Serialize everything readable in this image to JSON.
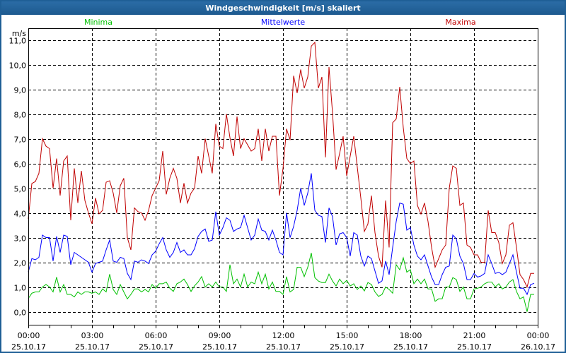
{
  "window": {
    "title": "Windgeschwindigkeit [m/s] skaliert"
  },
  "chart_data": {
    "type": "line",
    "title": "Windgeschwindigkeit [m/s] skaliert",
    "ylabel": "m/s",
    "ylim": [
      -0.56,
      11.47
    ],
    "y_ticks": [
      0,
      1,
      2,
      3,
      4,
      5,
      6,
      7,
      8,
      9,
      10,
      11
    ],
    "y_tick_labels": [
      "0,0",
      "1,0",
      "2,0",
      "3,0",
      "4,0",
      "5,0",
      "6,0",
      "7,0",
      "8,0",
      "9,0",
      "10,0",
      "11,0"
    ],
    "x_range_hours": [
      0,
      24
    ],
    "x_step_minutes": 10,
    "x_ticks_hours": [
      0,
      3,
      6,
      9,
      12,
      15,
      18,
      21,
      24
    ],
    "x_tick_labels": [
      {
        "time": "00:00",
        "date": "25.10.17"
      },
      {
        "time": "03:00",
        "date": "25.10.17"
      },
      {
        "time": "06:00",
        "date": "25.10.17"
      },
      {
        "time": "09:00",
        "date": "25.10.17"
      },
      {
        "time": "12:00",
        "date": "25.10.17"
      },
      {
        "time": "15:00",
        "date": "25.10.17"
      },
      {
        "time": "18:00",
        "date": "25.10.17"
      },
      {
        "time": "21:00",
        "date": "25.10.17"
      },
      {
        "time": "00:00",
        "date": "26.10.17"
      }
    ],
    "grid": true,
    "legend_placement": "top",
    "series": [
      {
        "name": "Minima",
        "color": "#00c000",
        "values": [
          0.53,
          0.75,
          0.8,
          0.8,
          1.0,
          1.1,
          1.0,
          0.8,
          1.4,
          0.8,
          1.1,
          0.7,
          0.7,
          0.6,
          0.8,
          0.7,
          0.8,
          0.8,
          0.75,
          0.8,
          0.7,
          0.92,
          0.8,
          1.52,
          0.9,
          0.7,
          1.1,
          0.8,
          0.52,
          0.7,
          0.92,
          0.92,
          0.8,
          0.9,
          0.8,
          1.1,
          0.95,
          1.13,
          1.13,
          1.2,
          0.95,
          0.82,
          1.13,
          1.2,
          1.32,
          1.1,
          0.82,
          1.05,
          1.2,
          1.42,
          1.0,
          1.13,
          1.0,
          1.2,
          1.0,
          1.0,
          0.82,
          1.9,
          1.13,
          1.32,
          1.0,
          1.52,
          1.0,
          1.2,
          1.13,
          1.6,
          1.13,
          1.52,
          0.92,
          1.2,
          0.82,
          0.82,
          0.7,
          1.42,
          0.8,
          0.9,
          1.8,
          1.8,
          1.42,
          1.8,
          2.38,
          1.38,
          1.24,
          1.18,
          1.18,
          1.52,
          1.24,
          1.04,
          1.32,
          1.13,
          1.27,
          1.04,
          1.13,
          0.9,
          1.04,
          0.84,
          1.18,
          1.1,
          0.8,
          0.62,
          0.7,
          1.0,
          0.9,
          0.75,
          1.9,
          1.7,
          2.18,
          1.6,
          1.7,
          1.13,
          1.32,
          1.13,
          1.32,
          0.92,
          0.92,
          0.42,
          0.52,
          0.52,
          1.0,
          1.0,
          1.38,
          1.3,
          0.82,
          1.0,
          0.52,
          0.52,
          0.92,
          0.95,
          1.0,
          1.13,
          1.2,
          1.2,
          1.0,
          1.13,
          0.92,
          1.0,
          1.2,
          1.3,
          0.82,
          0.52,
          0.6,
          0.0,
          0.7,
          0.7
        ]
      },
      {
        "name": "Mittelwerte",
        "color": "#0000ff",
        "values": [
          1.6,
          2.15,
          2.1,
          2.2,
          3.1,
          3.0,
          3.0,
          2.05,
          3.05,
          2.4,
          3.1,
          3.05,
          1.9,
          2.4,
          2.3,
          2.2,
          2.1,
          2.0,
          1.6,
          1.95,
          2.0,
          2.05,
          2.5,
          2.9,
          2.05,
          2.0,
          2.2,
          2.15,
          1.55,
          1.3,
          2.05,
          2.0,
          2.1,
          2.05,
          1.95,
          2.3,
          2.45,
          2.75,
          3.0,
          2.5,
          2.2,
          2.4,
          2.8,
          2.4,
          2.5,
          2.3,
          2.3,
          2.55,
          3.05,
          3.25,
          3.35,
          2.85,
          2.9,
          4.05,
          3.1,
          3.4,
          3.8,
          3.7,
          3.25,
          3.35,
          3.4,
          3.9,
          3.4,
          2.9,
          3.1,
          3.75,
          3.3,
          3.25,
          2.9,
          3.3,
          2.9,
          2.4,
          2.3,
          4.0,
          3.0,
          3.45,
          4.1,
          5.0,
          4.3,
          4.8,
          5.6,
          4.1,
          3.9,
          3.85,
          2.8,
          4.2,
          3.85,
          2.7,
          3.15,
          3.2,
          3.0,
          2.25,
          3.2,
          3.1,
          2.25,
          1.85,
          2.25,
          2.15,
          1.65,
          1.15,
          1.25,
          2.05,
          1.5,
          2.6,
          3.65,
          4.4,
          4.35,
          3.3,
          3.4,
          2.7,
          2.25,
          2.1,
          2.3,
          1.85,
          1.4,
          1.1,
          1.1,
          1.5,
          1.8,
          1.85,
          3.1,
          2.95,
          2.25,
          1.95,
          1.3,
          1.3,
          1.55,
          1.4,
          1.45,
          1.55,
          2.3,
          1.95,
          1.55,
          1.6,
          1.5,
          1.6,
          1.95,
          2.3,
          1.6,
          0.95,
          0.95,
          0.7,
          1.1,
          1.15
        ]
      },
      {
        "name": "Maxima",
        "color": "#c00000",
        "values": [
          3.76,
          5.19,
          5.27,
          5.6,
          7.0,
          6.7,
          6.6,
          5.0,
          6.2,
          4.7,
          6.1,
          6.3,
          3.7,
          5.8,
          4.4,
          5.7,
          4.5,
          4.0,
          3.56,
          4.6,
          3.96,
          4.1,
          5.24,
          5.3,
          4.8,
          4.0,
          5.1,
          5.4,
          3.0,
          2.5,
          4.2,
          4.05,
          4.0,
          3.7,
          4.1,
          4.7,
          5.0,
          5.3,
          6.5,
          4.75,
          5.4,
          5.8,
          5.4,
          4.4,
          5.2,
          4.4,
          4.8,
          5.0,
          6.3,
          5.6,
          7.0,
          6.3,
          5.6,
          7.6,
          6.7,
          6.6,
          8.0,
          7.05,
          6.3,
          7.9,
          6.6,
          7.0,
          6.75,
          6.5,
          6.6,
          7.4,
          6.1,
          7.4,
          6.5,
          7.1,
          7.1,
          4.7,
          5.8,
          7.4,
          6.95,
          9.55,
          8.85,
          9.8,
          9.05,
          9.5,
          10.75,
          10.9,
          9.05,
          9.5,
          6.25,
          9.9,
          8.05,
          5.75,
          6.4,
          7.1,
          5.5,
          6.3,
          7.1,
          5.85,
          4.6,
          3.25,
          3.55,
          4.7,
          3.2,
          2.25,
          1.8,
          4.5,
          2.6,
          7.65,
          7.8,
          9.1,
          7.45,
          6.2,
          6.0,
          6.1,
          4.3,
          3.95,
          4.4,
          3.65,
          2.6,
          1.8,
          2.15,
          2.5,
          2.7,
          5.0,
          5.9,
          5.8,
          4.3,
          4.4,
          2.7,
          2.6,
          2.3,
          2.3,
          2.0,
          2.0,
          4.1,
          3.2,
          3.2,
          2.8,
          1.95,
          2.3,
          3.5,
          3.6,
          2.6,
          1.5,
          1.3,
          1.0,
          1.55,
          1.55
        ]
      }
    ]
  }
}
